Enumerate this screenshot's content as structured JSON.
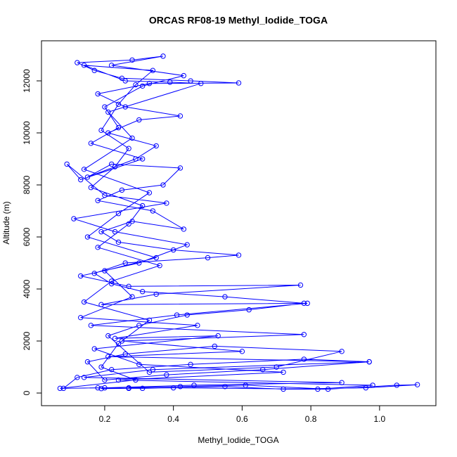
{
  "chart_data": {
    "type": "line",
    "markers": true,
    "title": "ORCAS RF08-19 Methyl_Iodide_TOGA",
    "x_label": "Methyl_Iodide_TOGA",
    "y_label": "Altitude (m)",
    "color": "#0000ff",
    "x": [
      0.27,
      0.42,
      0.61,
      0.85,
      1.05,
      1.11,
      0.96,
      0.72,
      0.55,
      0.31,
      0.18,
      0.08,
      0.12,
      0.22,
      0.45,
      0.78,
      0.97,
      0.66,
      0.38,
      0.2,
      0.15,
      0.26,
      0.52,
      0.89,
      0.7,
      0.33,
      0.21,
      0.3,
      0.44,
      0.62,
      0.78,
      0.55,
      0.31,
      0.22,
      0.17,
      0.26,
      0.5,
      0.59,
      0.4,
      0.24,
      0.19,
      0.28,
      0.43,
      0.34,
      0.18,
      0.25,
      0.37,
      0.42,
      0.22,
      0.15,
      0.29,
      0.35,
      0.21,
      0.3,
      0.42,
      0.26,
      0.18,
      0.33,
      0.59,
      0.45,
      0.25,
      0.17,
      0.12,
      0.28,
      0.37,
      0.22,
      0.43,
      0.31,
      0.2,
      0.24,
      0.16,
      0.31,
      0.13,
      0.09,
      0.2,
      0.38,
      0.11,
      0.23,
      0.44,
      0.3,
      0.13,
      0.27,
      0.77,
      0.35,
      0.19,
      0.79,
      0.41,
      0.16,
      0.78,
      0.25,
      0.6,
      0.21,
      0.97,
      0.34,
      0.14,
      0.89,
      0.46,
      0.2,
      0.07,
      0.29,
      0.19,
      0.24,
      0.33,
      0.14,
      0.22,
      0.36,
      0.18,
      0.27,
      0.31,
      0.16,
      0.23,
      0.27,
      0.19,
      0.24,
      0.29,
      0.34,
      0.14,
      0.26,
      0.39,
      0.48,
      0.21,
      0.28,
      0.14,
      0.33,
      0.24,
      0.15,
      0.35,
      0.2,
      0.28,
      0.13,
      0.47,
      0.23,
      0.53,
      0.17,
      0.3,
      0.72,
      0.24,
      0.98,
      0.82,
      0.4,
      0.27,
      0.19
    ],
    "values": [
      200,
      250,
      300,
      150,
      300,
      320,
      200,
      150,
      250,
      180,
      200,
      180,
      600,
      900,
      1100,
      1300,
      1200,
      900,
      700,
      500,
      1200,
      1500,
      1800,
      1600,
      1000,
      800,
      2200,
      2600,
      3000,
      3200,
      3450,
      3700,
      3900,
      4200,
      4600,
      5000,
      5200,
      5300,
      5500,
      5800,
      6200,
      6600,
      6300,
      7000,
      7400,
      7800,
      8000,
      8650,
      8800,
      8300,
      9000,
      9500,
      10000,
      10500,
      10650,
      11000,
      11500,
      11900,
      11920,
      12000,
      12100,
      12400,
      12700,
      12800,
      12950,
      12600,
      12200,
      11800,
      11000,
      10200,
      9600,
      9000,
      8200,
      8800,
      7600,
      7300,
      6700,
      6200,
      5700,
      5000,
      4500,
      4100,
      4150,
      3800,
      3400,
      3450,
      3000,
      2600,
      2250,
      2000,
      1600,
      1400,
      1200,
      900,
      600,
      400,
      300,
      200,
      180,
      500,
      1000,
      1900,
      2800,
      3500,
      4300,
      4900,
      5600,
      6500,
      7200,
      7900,
      8700,
      9400,
      10100,
      11100,
      11850,
      12400,
      12600,
      12000,
      11950,
      11900,
      10800,
      9800,
      8600,
      7700,
      6900,
      6000,
      5200,
      4700,
      3700,
      2900,
      2600,
      2100,
      2200,
      1700,
      1100,
      800,
      500,
      300,
      150,
      200,
      180,
      170
    ],
    "xlim": [
      0.016,
      1.164
    ],
    "ylim": [
      -486,
      13541
    ],
    "xticks": [
      0.2,
      0.4,
      0.6,
      0.8,
      {
        "value": 1,
        "label": "1.0"
      }
    ],
    "yticks": [
      0,
      2000,
      4000,
      6000,
      8000,
      10000,
      12000
    ]
  }
}
